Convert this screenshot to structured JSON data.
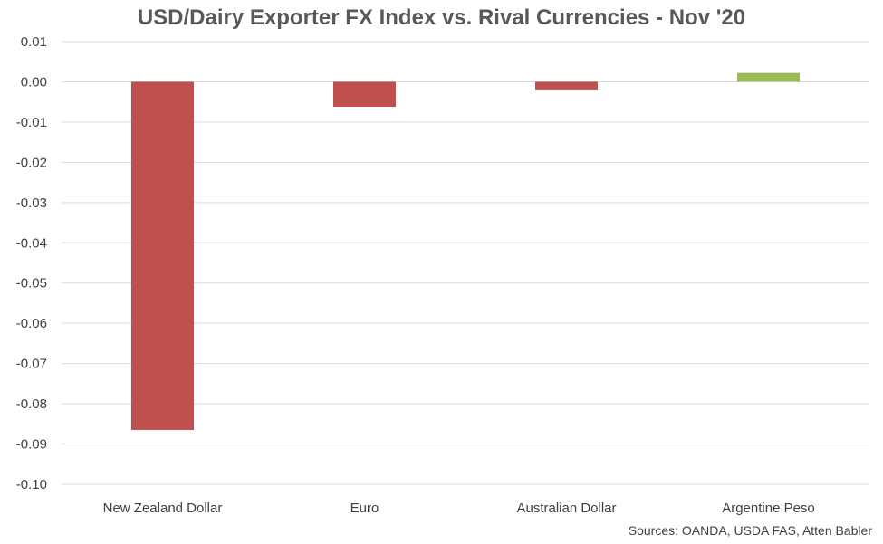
{
  "chart_data": {
    "type": "bar",
    "title": "USD/Dairy Exporter FX Index vs. Rival Currencies - Nov '20",
    "categories": [
      "New Zealand Dollar",
      "Euro",
      "Australian Dollar",
      "Argentine Peso"
    ],
    "values": [
      -0.0865,
      -0.0062,
      -0.0019,
      0.0022
    ],
    "bar_colors": [
      "#c0504d",
      "#c0504d",
      "#c0504d",
      "#9bbb59"
    ],
    "ylim": [
      -0.1,
      0.01
    ],
    "yticks": [
      0.01,
      0.0,
      -0.01,
      -0.02,
      -0.03,
      -0.04,
      -0.05,
      -0.06,
      -0.07,
      -0.08,
      -0.09,
      -0.1
    ],
    "ytick_labels": [
      "0.01",
      "0.00",
      "-0.01",
      "-0.02",
      "-0.03",
      "-0.04",
      "-0.05",
      "-0.06",
      "-0.07",
      "-0.08",
      "-0.09",
      "-0.10"
    ],
    "grid": true,
    "xlabel": "",
    "ylabel": ""
  },
  "source_note": "Sources: OANDA, USDA FAS, Atten Babler",
  "colors": {
    "grid": "#d9d9d9",
    "text": "#404040",
    "title": "#595959"
  }
}
